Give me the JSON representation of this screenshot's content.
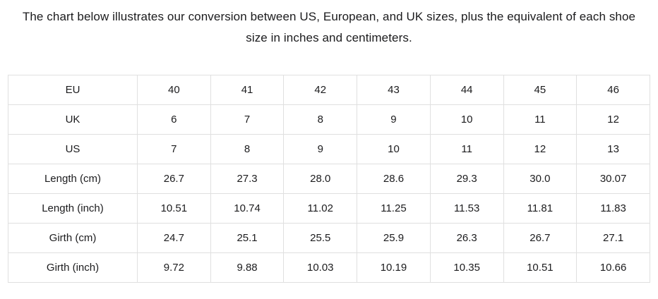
{
  "heading": "The chart below illustrates our conversion between US, European, and UK sizes, plus the equivalent of each shoe size in inches and centimeters.",
  "table": {
    "rows": [
      {
        "label": "EU",
        "values": [
          "40",
          "41",
          "42",
          "43",
          "44",
          "45",
          "46"
        ]
      },
      {
        "label": "UK",
        "values": [
          "6",
          "7",
          "8",
          "9",
          "10",
          "11",
          "12"
        ]
      },
      {
        "label": "US",
        "values": [
          "7",
          "8",
          "9",
          "10",
          "11",
          "12",
          "13"
        ]
      },
      {
        "label": "Length (cm)",
        "values": [
          "26.7",
          "27.3",
          "28.0",
          "28.6",
          "29.3",
          "30.0",
          "30.07"
        ]
      },
      {
        "label": "Length (inch)",
        "values": [
          "10.51",
          "10.74",
          "11.02",
          "11.25",
          "11.53",
          "11.81",
          "11.83"
        ]
      },
      {
        "label": "Girth (cm)",
        "values": [
          "24.7",
          "25.1",
          "25.5",
          "25.9",
          "26.3",
          "26.7",
          "27.1"
        ]
      },
      {
        "label": "Girth (inch)",
        "values": [
          "9.72",
          "9.88",
          "10.03",
          "10.19",
          "10.35",
          "10.51",
          "10.66"
        ]
      }
    ]
  },
  "colors": {
    "text": "#1c1c1e",
    "border": "#e0e0e0",
    "background": "#ffffff"
  }
}
